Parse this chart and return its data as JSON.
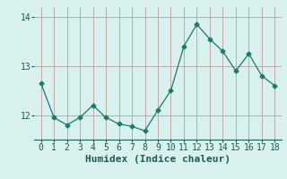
{
  "x": [
    0,
    1,
    2,
    3,
    4,
    5,
    6,
    7,
    8,
    9,
    10,
    11,
    12,
    13,
    14,
    15,
    16,
    17,
    18
  ],
  "y": [
    12.65,
    11.95,
    11.8,
    11.95,
    12.2,
    11.95,
    11.82,
    11.77,
    11.68,
    12.1,
    12.5,
    13.4,
    13.85,
    13.55,
    13.3,
    12.9,
    13.25,
    12.8,
    12.6
  ],
  "line_color": "#1a7a6e",
  "marker": "D",
  "marker_size": 2.5,
  "bg_color": "#d8f0ee",
  "grid_color": "#c0a8a8",
  "xlabel": "Humidex (Indice chaleur)",
  "xlabel_fontsize": 8,
  "yticks": [
    12,
    13,
    14
  ],
  "ylim": [
    11.5,
    14.2
  ],
  "xlim": [
    -0.5,
    18.5
  ],
  "xticks": [
    0,
    1,
    2,
    3,
    4,
    5,
    6,
    7,
    8,
    9,
    10,
    11,
    12,
    13,
    14,
    15,
    16,
    17,
    18
  ],
  "tick_fontsize": 7
}
